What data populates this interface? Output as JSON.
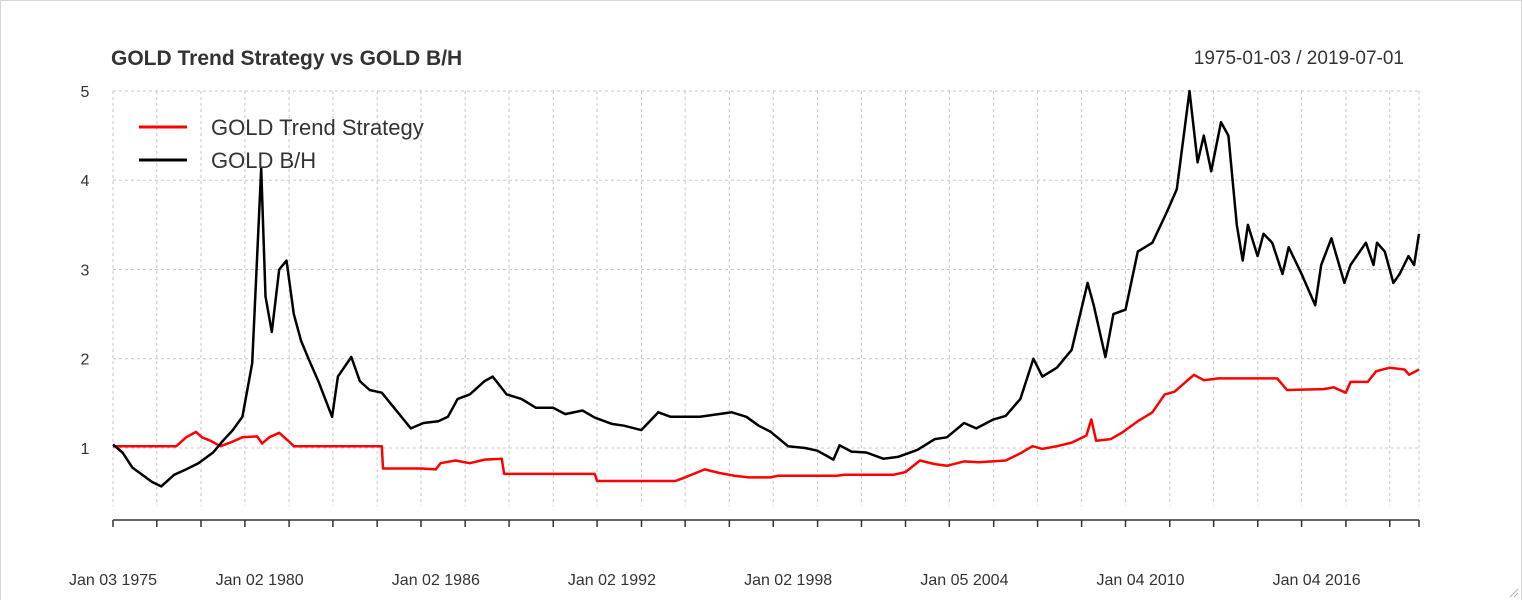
{
  "chart_data": {
    "type": "line",
    "title": "GOLD Trend Strategy vs GOLD B/H",
    "date_range": "1975-01-03 / 2019-07-01",
    "xlabel": "",
    "ylabel": "",
    "ylim": [
      0.35,
      5.0
    ],
    "y_ticks": [
      1,
      2,
      3,
      4,
      5
    ],
    "x_tick_labels": [
      {
        "label": "Jan 03 1975",
        "date": "1975-01-03"
      },
      {
        "label": "Jan 02 1980",
        "date": "1980-01-02"
      },
      {
        "label": "Jan 02 1986",
        "date": "1986-01-02"
      },
      {
        "label": "Jan 02 1992",
        "date": "1992-01-02"
      },
      {
        "label": "Jan 02 1998",
        "date": "1998-01-02"
      },
      {
        "label": "Jan 05 2004",
        "date": "2004-01-05"
      },
      {
        "label": "Jan 04 2010",
        "date": "2010-01-04"
      },
      {
        "label": "Jan 04 2016",
        "date": "2016-01-04"
      }
    ],
    "x_minor_ticks": [
      "1975-01-03",
      "1976-07-01",
      "1978-01-02",
      "1979-07-02",
      "1981-01-02",
      "1982-07-01",
      "1984-01-03",
      "1985-07-01",
      "1987-01-02",
      "1988-07-01",
      "1990-01-02",
      "1991-07-01",
      "1993-01-04",
      "1994-07-01",
      "1996-01-02",
      "1997-07-01",
      "1999-01-04",
      "2000-07-03",
      "2002-01-02",
      "2003-07-01",
      "2005-01-03",
      "2006-07-03",
      "2008-01-02",
      "2009-07-01",
      "2011-01-03",
      "2012-07-02",
      "2014-01-02",
      "2015-07-01",
      "2017-01-03",
      "2018-07-02",
      "2019-07-01"
    ],
    "grid": true,
    "legend_position": "top-left",
    "series": [
      {
        "name": "GOLD Trend Strategy",
        "color": "#ff0000",
        "points": [
          [
            "1975-01-03",
            1.02
          ],
          [
            "1977-03-01",
            1.02
          ],
          [
            "1977-07-01",
            1.12
          ],
          [
            "1977-11-01",
            1.18
          ],
          [
            "1978-01-15",
            1.12
          ],
          [
            "1978-05-01",
            1.08
          ],
          [
            "1978-09-01",
            1.02
          ],
          [
            "1979-01-01",
            1.06
          ],
          [
            "1979-06-01",
            1.12
          ],
          [
            "1979-12-01",
            1.13
          ],
          [
            "1980-02-01",
            1.05
          ],
          [
            "1980-05-01",
            1.12
          ],
          [
            "1980-09-01",
            1.17
          ],
          [
            "1981-01-15",
            1.06
          ],
          [
            "1981-03-01",
            1.02
          ],
          [
            "1984-03-01",
            1.02
          ],
          [
            "1984-03-15",
            0.77
          ],
          [
            "1985-07-01",
            0.77
          ],
          [
            "1986-01-01",
            0.76
          ],
          [
            "1986-03-01",
            0.83
          ],
          [
            "1986-09-01",
            0.86
          ],
          [
            "1987-03-01",
            0.83
          ],
          [
            "1987-09-01",
            0.87
          ],
          [
            "1988-04-01",
            0.88
          ],
          [
            "1988-05-01",
            0.71
          ],
          [
            "1991-06-01",
            0.71
          ],
          [
            "1991-07-01",
            0.63
          ],
          [
            "1994-03-01",
            0.63
          ],
          [
            "1994-06-01",
            0.66
          ],
          [
            "1995-03-01",
            0.76
          ],
          [
            "1995-09-01",
            0.72
          ],
          [
            "1996-03-01",
            0.69
          ],
          [
            "1996-09-01",
            0.67
          ],
          [
            "1997-06-01",
            0.67
          ],
          [
            "1997-09-01",
            0.69
          ],
          [
            "1999-09-01",
            0.69
          ],
          [
            "1999-12-01",
            0.7
          ],
          [
            "2001-08-01",
            0.7
          ],
          [
            "2002-01-01",
            0.73
          ],
          [
            "2002-07-01",
            0.86
          ],
          [
            "2003-01-01",
            0.82
          ],
          [
            "2003-06-01",
            0.8
          ],
          [
            "2004-01-01",
            0.85
          ],
          [
            "2004-07-01",
            0.84
          ],
          [
            "2005-06-01",
            0.86
          ],
          [
            "2005-12-01",
            0.94
          ],
          [
            "2006-05-01",
            1.02
          ],
          [
            "2006-09-01",
            0.99
          ],
          [
            "2007-03-01",
            1.02
          ],
          [
            "2007-09-01",
            1.06
          ],
          [
            "2008-03-01",
            1.14
          ],
          [
            "2008-05-01",
            1.32
          ],
          [
            "2008-07-01",
            1.08
          ],
          [
            "2009-01-01",
            1.1
          ],
          [
            "2009-06-01",
            1.18
          ],
          [
            "2009-12-01",
            1.3
          ],
          [
            "2010-06-01",
            1.4
          ],
          [
            "2010-11-01",
            1.6
          ],
          [
            "2011-03-01",
            1.63
          ],
          [
            "2011-08-01",
            1.75
          ],
          [
            "2011-11-01",
            1.82
          ],
          [
            "2012-03-01",
            1.76
          ],
          [
            "2012-09-01",
            1.78
          ],
          [
            "2013-04-01",
            1.78
          ],
          [
            "2014-09-01",
            1.78
          ],
          [
            "2015-01-01",
            1.65
          ],
          [
            "2016-04-01",
            1.66
          ],
          [
            "2016-08-01",
            1.68
          ],
          [
            "2017-01-01",
            1.62
          ],
          [
            "2017-03-01",
            1.74
          ],
          [
            "2017-10-01",
            1.74
          ],
          [
            "2018-01-15",
            1.86
          ],
          [
            "2018-07-01",
            1.9
          ],
          [
            "2019-01-01",
            1.88
          ],
          [
            "2019-03-01",
            1.82
          ],
          [
            "2019-07-01",
            1.88
          ]
        ]
      },
      {
        "name": "GOLD B/H",
        "color": "#000000",
        "points": [
          [
            "1975-01-03",
            1.04
          ],
          [
            "1975-05-01",
            0.95
          ],
          [
            "1975-09-01",
            0.78
          ],
          [
            "1976-01-01",
            0.7
          ],
          [
            "1976-05-01",
            0.62
          ],
          [
            "1976-08-25",
            0.57
          ],
          [
            "1977-02-01",
            0.7
          ],
          [
            "1977-07-01",
            0.76
          ],
          [
            "1977-12-01",
            0.83
          ],
          [
            "1978-06-01",
            0.95
          ],
          [
            "1978-10-01",
            1.08
          ],
          [
            "1979-02-01",
            1.2
          ],
          [
            "1979-06-01",
            1.35
          ],
          [
            "1979-10-01",
            1.95
          ],
          [
            "1980-01-21",
            4.13
          ],
          [
            "1980-03-15",
            2.7
          ],
          [
            "1980-06-01",
            2.3
          ],
          [
            "1980-09-01",
            3.0
          ],
          [
            "1980-12-01",
            3.1
          ],
          [
            "1981-03-01",
            2.5
          ],
          [
            "1981-06-01",
            2.2
          ],
          [
            "1981-09-01",
            2.0
          ],
          [
            "1982-01-01",
            1.75
          ],
          [
            "1982-06-21",
            1.35
          ],
          [
            "1982-09-01",
            1.8
          ],
          [
            "1983-02-15",
            2.02
          ],
          [
            "1983-06-01",
            1.75
          ],
          [
            "1983-10-01",
            1.65
          ],
          [
            "1984-03-01",
            1.62
          ],
          [
            "1984-08-01",
            1.45
          ],
          [
            "1985-02-25",
            1.22
          ],
          [
            "1985-08-01",
            1.28
          ],
          [
            "1986-02-01",
            1.3
          ],
          [
            "1986-06-01",
            1.35
          ],
          [
            "1986-10-01",
            1.55
          ],
          [
            "1987-03-01",
            1.6
          ],
          [
            "1987-09-01",
            1.75
          ],
          [
            "1987-12-10",
            1.8
          ],
          [
            "1988-06-01",
            1.6
          ],
          [
            "1988-12-01",
            1.55
          ],
          [
            "1989-06-01",
            1.45
          ],
          [
            "1990-01-01",
            1.45
          ],
          [
            "1990-06-01",
            1.38
          ],
          [
            "1991-01-01",
            1.42
          ],
          [
            "1991-06-01",
            1.34
          ],
          [
            "1992-01-01",
            1.27
          ],
          [
            "1992-06-01",
            1.25
          ],
          [
            "1993-01-01",
            1.2
          ],
          [
            "1993-08-01",
            1.4
          ],
          [
            "1994-01-01",
            1.35
          ],
          [
            "1995-01-01",
            1.35
          ],
          [
            "1996-02-01",
            1.4
          ],
          [
            "1996-08-01",
            1.35
          ],
          [
            "1997-01-01",
            1.25
          ],
          [
            "1997-06-01",
            1.18
          ],
          [
            "1998-01-01",
            1.02
          ],
          [
            "1998-08-01",
            1.0
          ],
          [
            "1999-01-01",
            0.97
          ],
          [
            "1999-07-20",
            0.87
          ],
          [
            "1999-10-05",
            1.03
          ],
          [
            "2000-03-01",
            0.96
          ],
          [
            "2000-09-01",
            0.95
          ],
          [
            "2001-04-01",
            0.88
          ],
          [
            "2001-10-01",
            0.9
          ],
          [
            "2002-06-01",
            0.98
          ],
          [
            "2003-01-01",
            1.1
          ],
          [
            "2003-06-01",
            1.12
          ],
          [
            "2004-01-01",
            1.28
          ],
          [
            "2004-06-01",
            1.22
          ],
          [
            "2005-01-01",
            1.32
          ],
          [
            "2005-06-01",
            1.36
          ],
          [
            "2005-12-01",
            1.55
          ],
          [
            "2006-05-12",
            2.0
          ],
          [
            "2006-09-01",
            1.8
          ],
          [
            "2007-03-01",
            1.9
          ],
          [
            "2007-09-01",
            2.1
          ],
          [
            "2008-03-17",
            2.85
          ],
          [
            "2008-06-01",
            2.6
          ],
          [
            "2008-10-24",
            2.02
          ],
          [
            "2009-02-01",
            2.5
          ],
          [
            "2009-07-01",
            2.55
          ],
          [
            "2009-12-01",
            3.2
          ],
          [
            "2010-06-01",
            3.3
          ],
          [
            "2010-12-01",
            3.65
          ],
          [
            "2011-04-01",
            3.9
          ],
          [
            "2011-09-06",
            5.0
          ],
          [
            "2011-12-15",
            4.2
          ],
          [
            "2012-03-01",
            4.5
          ],
          [
            "2012-06-01",
            4.1
          ],
          [
            "2012-10-01",
            4.65
          ],
          [
            "2013-01-01",
            4.5
          ],
          [
            "2013-04-16",
            3.5
          ],
          [
            "2013-06-28",
            3.1
          ],
          [
            "2013-09-01",
            3.5
          ],
          [
            "2013-12-31",
            3.15
          ],
          [
            "2014-03-14",
            3.4
          ],
          [
            "2014-07-01",
            3.3
          ],
          [
            "2014-11-05",
            2.95
          ],
          [
            "2015-01-22",
            3.25
          ],
          [
            "2015-07-01",
            2.95
          ],
          [
            "2015-12-17",
            2.6
          ],
          [
            "2016-03-01",
            3.05
          ],
          [
            "2016-07-06",
            3.35
          ],
          [
            "2016-12-15",
            2.85
          ],
          [
            "2017-03-01",
            3.05
          ],
          [
            "2017-09-08",
            3.3
          ],
          [
            "2017-12-12",
            3.05
          ],
          [
            "2018-01-25",
            3.3
          ],
          [
            "2018-05-01",
            3.2
          ],
          [
            "2018-08-16",
            2.85
          ],
          [
            "2018-11-01",
            2.95
          ],
          [
            "2019-02-20",
            3.15
          ],
          [
            "2019-05-01",
            3.05
          ],
          [
            "2019-07-01",
            3.4
          ]
        ]
      }
    ]
  }
}
